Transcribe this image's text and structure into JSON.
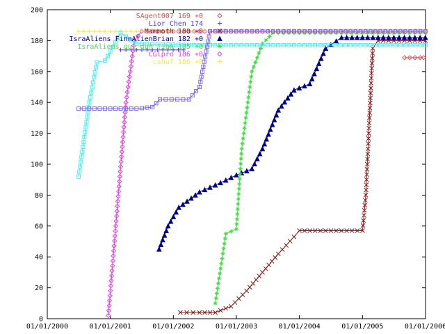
{
  "chart_data": {
    "type": "line",
    "title": "",
    "xlabel": "",
    "ylabel": "",
    "ylim": [
      0,
      200
    ],
    "xlim": [
      "2000-01-01",
      "2006-01-01"
    ],
    "grid": false,
    "legend_position": "top-right",
    "y_ticks": [
      "0",
      "20",
      "40",
      "60",
      "80",
      "100",
      "120",
      "140",
      "160",
      "180",
      "200"
    ],
    "x_ticks": [
      "01/01/2000",
      "01/01/2001",
      "01/01/2002",
      "01/01/2003",
      "01/01/2004",
      "01/01/2005",
      "01/01/2006"
    ],
    "series": [
      {
        "name": "SAgent007 169 +0",
        "color": "#e05050",
        "marker": "diamond",
        "points": [
          [
            "2005-09-01",
            169
          ],
          [
            "2005-10-01",
            169
          ],
          [
            "2005-11-01",
            169
          ],
          [
            "2005-12-01",
            169
          ],
          [
            "2005-12-20",
            169
          ]
        ]
      },
      {
        "name": "Lior Chen 174",
        "color": "#4444dd",
        "marker": "plus",
        "points": [
          [
            "2001-03-01",
            174
          ],
          [
            "2001-09-01",
            174
          ],
          [
            "2002-03-01",
            174
          ]
        ]
      },
      {
        "name": "Mammoth 180 +0",
        "color": "#8b1a1a",
        "marker": "x",
        "points": [
          [
            "2002-02-10",
            4
          ],
          [
            "2002-06-01",
            4
          ],
          [
            "2002-09-01",
            4
          ],
          [
            "2002-12-01",
            8
          ],
          [
            "2003-03-01",
            18
          ],
          [
            "2003-06-01",
            30
          ],
          [
            "2003-09-01",
            42
          ],
          [
            "2003-12-01",
            53
          ],
          [
            "2004-01-01",
            57
          ],
          [
            "2004-06-01",
            57
          ],
          [
            "2005-01-01",
            57
          ],
          [
            "2005-01-20",
            80
          ],
          [
            "2005-02-10",
            130
          ],
          [
            "2005-03-01",
            175
          ],
          [
            "2005-04-01",
            180
          ],
          [
            "2005-12-31",
            180
          ]
        ]
      },
      {
        "name": "IsraAliens  FinnAlienBrian 182 +0",
        "color": "#00008b",
        "marker": "triangle",
        "points": [
          [
            "2001-10-10",
            45
          ],
          [
            "2001-12-01",
            60
          ],
          [
            "2002-02-01",
            72
          ],
          [
            "2002-06-01",
            82
          ],
          [
            "2002-10-01",
            88
          ],
          [
            "2003-01-01",
            93
          ],
          [
            "2003-04-01",
            97
          ],
          [
            "2003-06-01",
            110
          ],
          [
            "2003-09-01",
            135
          ],
          [
            "2003-12-01",
            148
          ],
          [
            "2004-03-01",
            152
          ],
          [
            "2004-06-01",
            175
          ],
          [
            "2004-09-01",
            182
          ],
          [
            "2005-06-01",
            182
          ],
          [
            "2005-12-31",
            182
          ]
        ]
      },
      {
        "name": "IsraAliens  gui  gun jinn 185 +0",
        "color": "#44dd44",
        "marker": "star",
        "points": [
          [
            "2002-09-01",
            10
          ],
          [
            "2002-11-01",
            55
          ],
          [
            "2003-01-01",
            58
          ],
          [
            "2003-02-01",
            110
          ],
          [
            "2003-04-01",
            160
          ],
          [
            "2003-06-01",
            178
          ],
          [
            "2003-08-01",
            185
          ],
          [
            "2003-12-01",
            185
          ],
          [
            "2004-06-01",
            185
          ],
          [
            "2005-06-01",
            185
          ],
          [
            "2005-12-31",
            185
          ]
        ]
      },
      {
        "name": "CGlpro 186 +0",
        "color": "#dd44dd",
        "marker": "diamond",
        "points": [
          [
            "2000-12-20",
            2
          ],
          [
            "2001-02-01",
            60
          ],
          [
            "2001-04-01",
            140
          ],
          [
            "2001-05-20",
            180
          ],
          [
            "2001-07-01",
            186
          ],
          [
            "2002-06-01",
            186
          ],
          [
            "2003-06-01",
            186
          ],
          [
            "2004-06-01",
            186
          ],
          [
            "2005-12-31",
            186
          ]
        ]
      },
      {
        "name": "cshuf 186 +0",
        "color": "#eeee33",
        "marker": "plus",
        "points": [
          [
            "2000-07-01",
            186
          ],
          [
            "2001-06-01",
            186
          ],
          [
            "2002-06-01",
            186
          ],
          [
            "2003-06-01",
            186
          ],
          [
            "2004-06-01",
            186
          ],
          [
            "2005-12-31",
            186
          ]
        ]
      },
      {
        "name": "",
        "color": "#44eeee",
        "marker": "square",
        "points": [
          [
            "2000-07-01",
            92
          ],
          [
            "2000-09-01",
            140
          ],
          [
            "2000-10-15",
            166
          ],
          [
            "2000-12-01",
            167
          ],
          [
            "2001-03-01",
            185
          ],
          [
            "2001-06-01",
            178
          ],
          [
            "2002-06-01",
            177
          ],
          [
            "2003-06-01",
            177
          ],
          [
            "2004-06-01",
            177
          ],
          [
            "2005-12-31",
            177
          ]
        ]
      },
      {
        "name": "",
        "color": "#7b68ee",
        "marker": "square",
        "points": [
          [
            "2000-07-01",
            136
          ],
          [
            "2001-06-01",
            136
          ],
          [
            "2001-09-01",
            137
          ],
          [
            "2001-10-15",
            142
          ],
          [
            "2002-04-01",
            142
          ],
          [
            "2002-06-01",
            150
          ],
          [
            "2002-08-01",
            186
          ],
          [
            "2003-06-01",
            186
          ],
          [
            "2004-06-01",
            186
          ],
          [
            "2005-12-31",
            186
          ]
        ]
      }
    ]
  }
}
